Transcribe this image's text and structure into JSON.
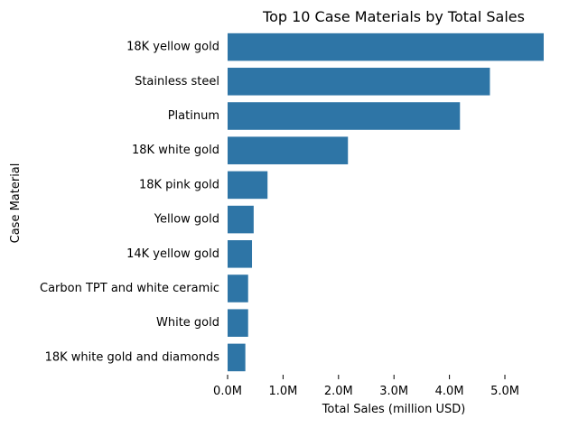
{
  "chart_data": {
    "type": "bar",
    "orientation": "horizontal",
    "title": "Top 10 Case Materials by Total Sales",
    "xlabel": "Total Sales (million USD)",
    "ylabel": "Case Material",
    "categories": [
      "18K yellow gold",
      "Stainless steel",
      "Platinum",
      "18K white gold",
      "18K pink gold",
      "Yellow gold",
      "14K yellow gold",
      "Carbon TPT and white ceramic",
      "White gold",
      "18K white gold and diamonds"
    ],
    "values": [
      5.7,
      4.73,
      4.19,
      2.17,
      0.72,
      0.47,
      0.44,
      0.37,
      0.37,
      0.32
    ],
    "x_ticks": [
      0,
      1,
      2,
      3,
      4,
      5
    ],
    "x_tick_labels": [
      "0.0M",
      "1.0M",
      "2.0M",
      "3.0M",
      "4.0M",
      "5.0M"
    ],
    "xlim": [
      0,
      5.7
    ],
    "grid": false,
    "bar_color": "#2e75a6"
  }
}
